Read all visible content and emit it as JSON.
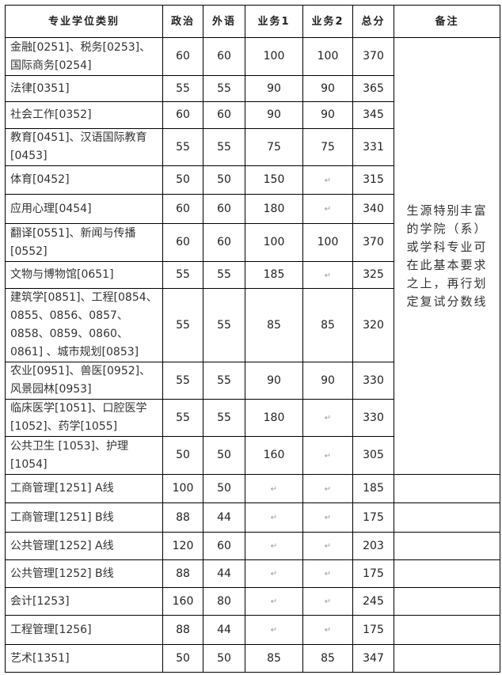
{
  "headers": [
    "专业学位类别",
    "政治",
    "外语",
    "业务1",
    "业务2",
    "总分",
    "备注"
  ],
  "rows": [
    {
      "name": "金融[0251]、税务[0253]、国际商务[0254]",
      "politics": "60",
      "lang": "60",
      "b1": "100",
      "b2": "100",
      "total": "370"
    },
    {
      "name": "法律[0351]",
      "politics": "55",
      "lang": "55",
      "b1": "90",
      "b2": "90",
      "total": "365"
    },
    {
      "name": "社会工作[0352]",
      "politics": "60",
      "lang": "60",
      "b1": "90",
      "b2": "90",
      "total": "345"
    },
    {
      "name": "教育[0451]、汉语国际教育[0453]",
      "politics": "55",
      "lang": "55",
      "b1": "75",
      "b2": "75",
      "total": "331"
    },
    {
      "name": "体育[0452]",
      "politics": "50",
      "lang": "50",
      "b1": "150",
      "b2": "",
      "total": "315"
    },
    {
      "name": "应用心理[0454]",
      "politics": "60",
      "lang": "60",
      "b1": "180",
      "b2": "",
      "total": "340"
    },
    {
      "name": "翻译[0551]、新闻与传播[0552]",
      "politics": "60",
      "lang": "60",
      "b1": "100",
      "b2": "100",
      "total": "370"
    },
    {
      "name": "文物与博物馆[0651]",
      "politics": "55",
      "lang": "55",
      "b1": "185",
      "b2": "",
      "total": "325"
    },
    {
      "name": "建筑学[0851]、工程[0854、0855、0856、0857、0858、0859、0860、0861] 、城市规划[0853]",
      "politics": "55",
      "lang": "55",
      "b1": "85",
      "b2": "85",
      "total": "320"
    },
    {
      "name": "农业[0951]、兽医[0952]、风景园林[0953]",
      "politics": "55",
      "lang": "55",
      "b1": "90",
      "b2": "90",
      "total": "330"
    },
    {
      "name": "临床医学[1051]、口腔医学[1052]、药学[1055]",
      "politics": "55",
      "lang": "55",
      "b1": "180",
      "b2": "",
      "total": "330"
    },
    {
      "name": "公共卫生 [1053]、护理[1054]",
      "politics": "50",
      "lang": "50",
      "b1": "160",
      "b2": "",
      "total": "305"
    },
    {
      "name": "工商管理[1251]  A线",
      "politics": "100",
      "lang": "50",
      "b1": "",
      "b2": "",
      "total": "185"
    },
    {
      "name": "工商管理[1251]  B线",
      "politics": "88",
      "lang": "44",
      "b1": "",
      "b2": "",
      "total": "175"
    },
    {
      "name": "公共管理[1252]  A线",
      "politics": "120",
      "lang": "60",
      "b1": "",
      "b2": "",
      "total": "203"
    },
    {
      "name": "公共管理[1252]  B线",
      "politics": "88",
      "lang": "44",
      "b1": "",
      "b2": "",
      "total": "175"
    },
    {
      "name": "会计[1253]",
      "politics": "160",
      "lang": "80",
      "b1": "",
      "b2": "",
      "total": "245"
    },
    {
      "name": "工程管理[1256]",
      "politics": "88",
      "lang": "44",
      "b1": "",
      "b2": "",
      "total": "175"
    },
    {
      "name": "艺术[1351]",
      "politics": "50",
      "lang": "50",
      "b1": "85",
      "b2": "85",
      "total": "347"
    }
  ],
  "remark": "生源特别丰富的学院（系）或学科专业可在此基本要求之上，再行划定复试分数线"
}
